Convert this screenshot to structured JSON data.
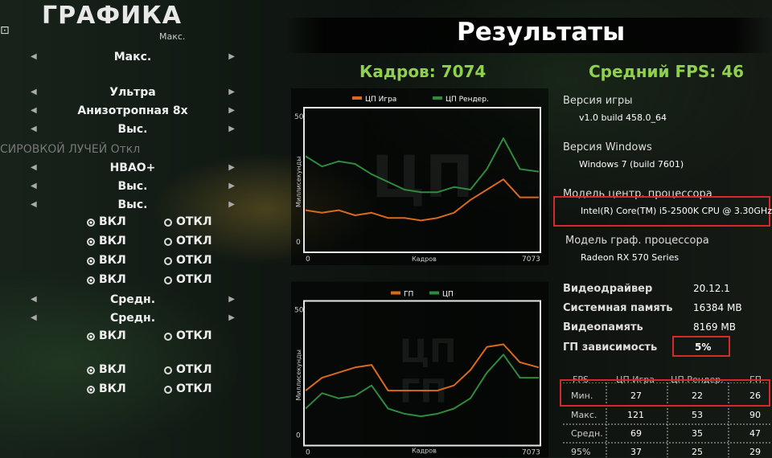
{
  "left_panel": {
    "title": "ГРАФИКА",
    "small_top_value": "Макс.",
    "rows": [
      "Макс.",
      "Ультра",
      "Анизотропная 8х",
      "Выс.",
      "HBAO+",
      "Выс.",
      "Выс.",
      "Средн.",
      "Средн."
    ],
    "ghost_text": "СИРОВКОЙ ЛУЧЕЙ  Откл",
    "radio_on": "ВКЛ",
    "radio_off": "ОТКЛ"
  },
  "results": {
    "title": "Результаты",
    "frames": "Кадров: 7074",
    "avg_fps": "Средний FPS: 46"
  },
  "charts": {
    "cpu": {
      "watermark": "ЦП",
      "legend": [
        "ЦП Игра",
        "ЦП Рендер."
      ],
      "colors": [
        "#d9691c",
        "#2f8a3c"
      ],
      "ylabel": "Миллисекунды",
      "xlabel": "Кадров",
      "x_start": "0",
      "x_end": "7073",
      "y_top": "50",
      "y_bottom": "0"
    },
    "gpu": {
      "watermark_a": "ЦП",
      "watermark_b": "ГП",
      "legend": [
        "ГП",
        "ЦП"
      ],
      "colors": [
        "#d9691c",
        "#2f8a3c"
      ],
      "ylabel": "Миллисекунды",
      "xlabel": "Кадров",
      "x_start": "0",
      "x_end": "7073",
      "y_top": "50",
      "y_bottom": "0"
    }
  },
  "chart_data": [
    {
      "type": "line",
      "x": [
        0,
        500,
        1000,
        1500,
        2000,
        2500,
        3000,
        3500,
        4000,
        4500,
        5000,
        5500,
        6000,
        6500,
        7073
      ],
      "series": [
        {
          "name": "ЦП Игра",
          "values": [
            12,
            11,
            12,
            10,
            11,
            9,
            9,
            8,
            9,
            11,
            16,
            20,
            24,
            17,
            17
          ]
        },
        {
          "name": "ЦП Рендер.",
          "values": [
            33,
            29,
            31,
            30,
            26,
            23,
            20,
            19,
            19,
            21,
            20,
            28,
            40,
            28,
            27
          ]
        }
      ],
      "xlabel": "Кадров",
      "ylabel": "Миллисекунды",
      "ylim": [
        0,
        50
      ]
    },
    {
      "type": "line",
      "x": [
        0,
        500,
        1000,
        1500,
        2000,
        2500,
        3000,
        3500,
        4000,
        4500,
        5000,
        5500,
        6000,
        6500,
        7073
      ],
      "series": [
        {
          "name": "ГП",
          "values": [
            17,
            22,
            24,
            26,
            27,
            17,
            17,
            17,
            17,
            19,
            25,
            34,
            35,
            28,
            26
          ]
        },
        {
          "name": "ЦП",
          "values": [
            10,
            16,
            14,
            15,
            19,
            10,
            8,
            7,
            8,
            10,
            14,
            24,
            31,
            22,
            22
          ]
        }
      ],
      "xlabel": "Кадров",
      "ylabel": "Миллисекунды",
      "ylim": [
        0,
        50
      ]
    }
  ],
  "info": {
    "game_version_label": "Версия игры",
    "game_version": "v1.0 build 458.0_64",
    "windows_label": "Версия Windows",
    "windows": "Windows 7 (build 7601)",
    "cpu_label": "Модель центр. процессора",
    "cpu": "Intel(R) Core(TM) i5-2500K CPU @ 3.30GHz",
    "gpu_label": "Модель граф. процессора",
    "gpu": "Radeon RX 570 Series",
    "driver_label": "Видеодрайвер",
    "driver": "20.12.1",
    "sysmem_label": "Системная память",
    "sysmem": "16384 MB",
    "vram_label": "Видеопамять",
    "vram": "8169 MB",
    "gpu_bound_label": "ГП зависимость",
    "gpu_bound": "5%"
  },
  "fps_table": {
    "headers": [
      "FPS",
      "ЦП Игра",
      "ЦП Рендер.",
      "ГП"
    ],
    "rows": [
      {
        "label": "Мин.",
        "values": [
          "27",
          "22",
          "26"
        ]
      },
      {
        "label": "Макс.",
        "values": [
          "121",
          "53",
          "90"
        ]
      },
      {
        "label": "Средн.",
        "values": [
          "69",
          "35",
          "47"
        ]
      },
      {
        "label": "95%",
        "values": [
          "37",
          "25",
          "29"
        ]
      }
    ]
  }
}
